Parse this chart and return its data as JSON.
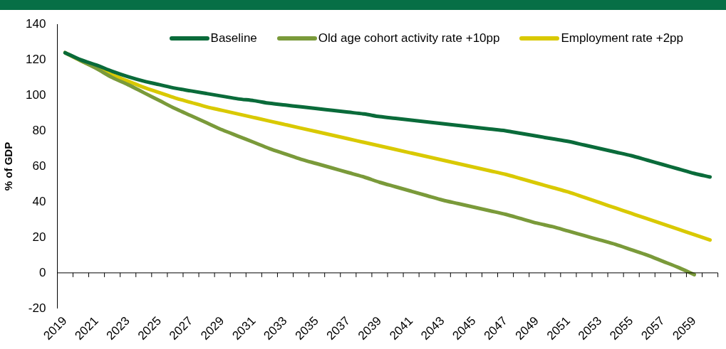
{
  "chart_data": {
    "type": "line",
    "ylabel": "% of GDP",
    "categories": [
      "2019",
      null,
      "2021",
      null,
      "2023",
      null,
      "2025",
      null,
      "2027",
      null,
      "2029",
      null,
      "2031",
      null,
      "2033",
      null,
      "2035",
      null,
      "2037",
      null,
      "2039",
      null,
      "2041",
      null,
      "2043",
      null,
      "2045",
      null,
      "2047",
      null,
      "2049",
      null,
      "2051",
      null,
      "2053",
      null,
      "2055",
      null,
      "2057",
      null,
      "2059",
      null
    ],
    "series": [
      {
        "name": "Baseline",
        "color": "#0a6b3a",
        "values": [
          124,
          120,
          117,
          113.5,
          110.5,
          108,
          106,
          104,
          102.5,
          101,
          99.5,
          98,
          97,
          95.5,
          94.5,
          93.5,
          92.5,
          91.5,
          90.5,
          89.5,
          88,
          87,
          86,
          85,
          84,
          83,
          82,
          81,
          80,
          78.5,
          77,
          75.5,
          74,
          72,
          70,
          68,
          66,
          63.5,
          61,
          58.5,
          56,
          54
        ]
      },
      {
        "name": "Old age cohort activity rate +10pp",
        "color": "#7a9a3a",
        "values": [
          124,
          119.5,
          115,
          110,
          106,
          101.5,
          97,
          92.5,
          88.5,
          84.5,
          80.5,
          77,
          73.5,
          70,
          67,
          64,
          61.5,
          59,
          56.5,
          54,
          51,
          48.5,
          46,
          43.5,
          41,
          39,
          37,
          35,
          33,
          30.5,
          28,
          26,
          23.5,
          21,
          18.5,
          16,
          13,
          10,
          6.5,
          3,
          -1,
          null
        ]
      },
      {
        "name": "Employment rate +2pp",
        "color": "#d9c900",
        "values": [
          124,
          119.5,
          115.5,
          111.5,
          108,
          104.5,
          101.5,
          98.5,
          96,
          93.5,
          91.5,
          89.5,
          87.5,
          85.5,
          83.5,
          81.5,
          79.5,
          77.5,
          75.5,
          73.5,
          71.5,
          69.5,
          67.5,
          65.5,
          63.5,
          61.5,
          59.5,
          57.5,
          55.5,
          53,
          50.5,
          48,
          45.5,
          42.5,
          39.5,
          36.5,
          33.5,
          30.5,
          27.5,
          24.5,
          21.5,
          18.5
        ]
      }
    ],
    "ylim": [
      -20,
      140
    ],
    "yticks": [
      -20,
      0,
      20,
      40,
      60,
      80,
      100,
      120,
      140
    ],
    "ref_lines": [
      {
        "axis": "y",
        "value": 0,
        "color": "#000000"
      }
    ],
    "grid": false,
    "legend": "top right",
    "marker": "none",
    "line_style": "solid"
  }
}
